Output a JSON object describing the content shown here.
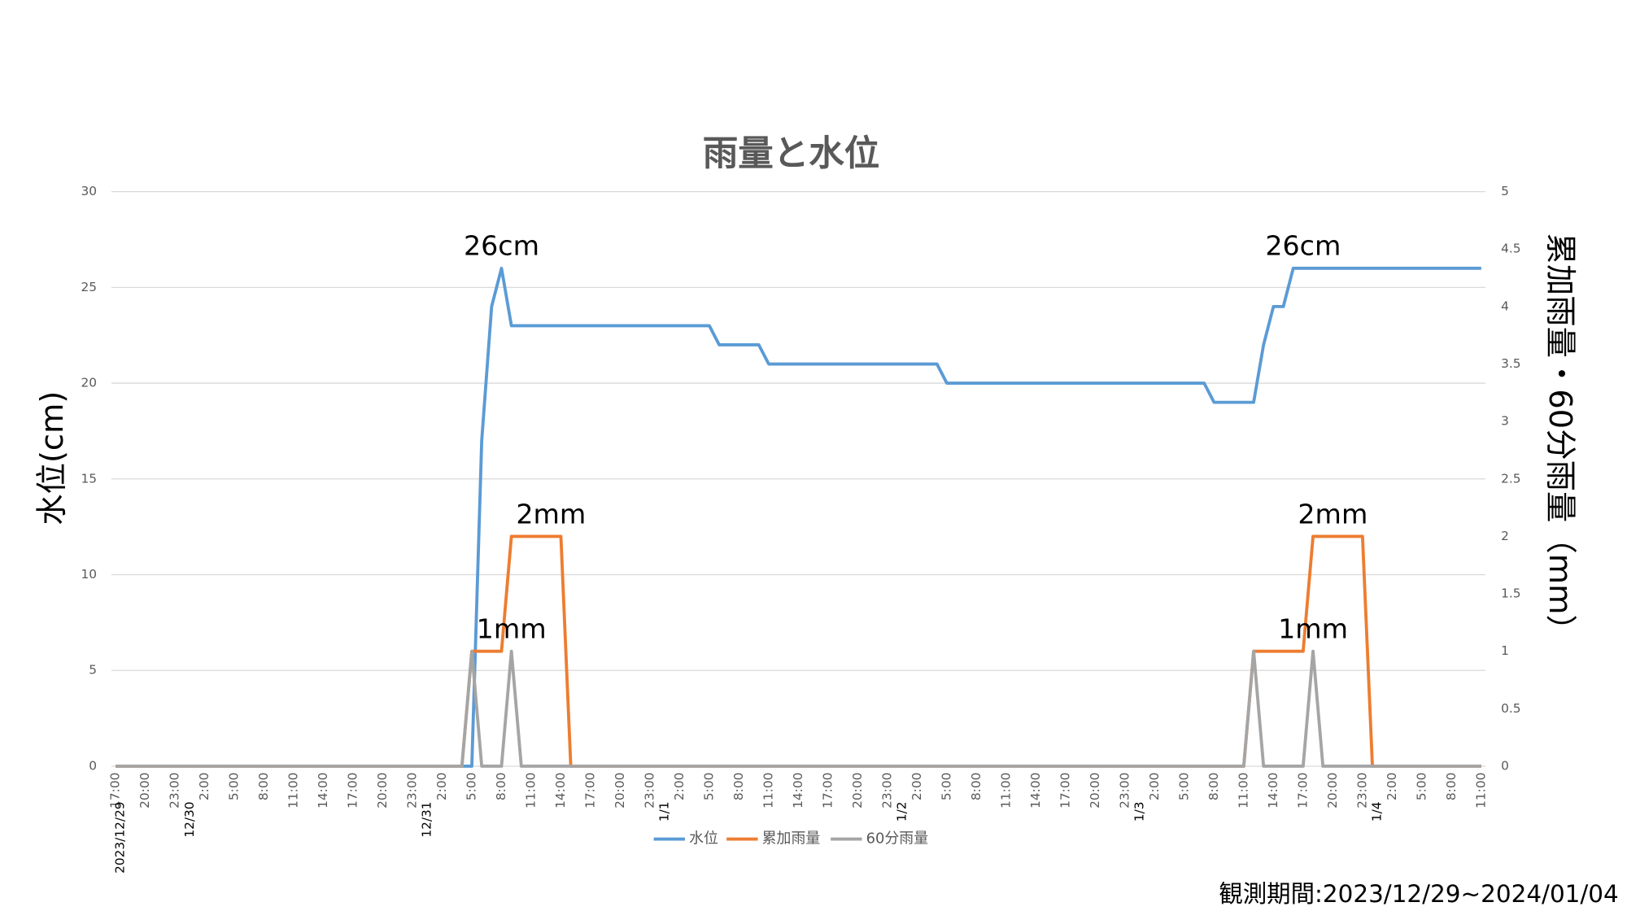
{
  "chart_data": {
    "type": "line",
    "title": "雨量と水位",
    "ylabel": "水位(cm)",
    "y2label": "累加雨量・60分雨量（mm）",
    "footnote": "観測期間:2023/12/29~2024/01/04",
    "categories": [
      "17:00",
      null,
      null,
      "20:00",
      null,
      null,
      "23:00",
      null,
      null,
      "2:00",
      null,
      null,
      "5:00",
      null,
      null,
      "8:00",
      null,
      null,
      "11:00",
      null,
      null,
      "14:00",
      null,
      null,
      "17:00",
      null,
      null,
      "20:00",
      null,
      null,
      "23:00",
      null,
      null,
      "2:00",
      null,
      null,
      "5:00",
      null,
      null,
      "8:00",
      null,
      null,
      "11:00",
      null,
      null,
      "14:00",
      null,
      null,
      "17:00",
      null,
      null,
      "20:00",
      null,
      null,
      "23:00",
      null,
      null,
      "2:00",
      null,
      null,
      "5:00",
      null,
      null,
      "8:00",
      null,
      null,
      "11:00",
      null,
      null,
      "14:00",
      null,
      null,
      "17:00",
      null,
      null,
      "20:00",
      null,
      null,
      "23:00",
      null,
      null,
      "2:00",
      null,
      null,
      "5:00",
      null,
      null,
      "8:00",
      null,
      null,
      "11:00",
      null,
      null,
      "14:00",
      null,
      null,
      "17:00",
      null,
      null,
      "20:00",
      null,
      null,
      "23:00",
      null,
      null,
      "2:00",
      null,
      null,
      "5:00",
      null,
      null,
      "8:00",
      null,
      null,
      "11:00",
      null,
      null,
      "14:00",
      null,
      null,
      "17:00",
      null,
      null,
      "20:00",
      null,
      null,
      "23:00",
      null,
      null,
      "2:00",
      null,
      null,
      "5:00",
      null,
      null,
      "8:00",
      null,
      null,
      "11:00"
    ],
    "date_categories": [
      "2023/12/29",
      null,
      null,
      null,
      null,
      null,
      null,
      "12/30",
      null,
      null,
      null,
      null,
      null,
      null,
      null,
      null,
      null,
      null,
      null,
      null,
      null,
      null,
      null,
      null,
      null,
      null,
      null,
      null,
      null,
      null,
      null,
      "12/31",
      null,
      null,
      null,
      null,
      null,
      null,
      null,
      null,
      null,
      null,
      null,
      null,
      null,
      null,
      null,
      null,
      null,
      null,
      null,
      null,
      null,
      null,
      null,
      "1/1",
      null,
      null,
      null,
      null,
      null,
      null,
      null,
      null,
      null,
      null,
      null,
      null,
      null,
      null,
      null,
      null,
      null,
      null,
      null,
      null,
      null,
      null,
      null,
      "1/2",
      null,
      null,
      null,
      null,
      null,
      null,
      null,
      null,
      null,
      null,
      null,
      null,
      null,
      null,
      null,
      null,
      null,
      null,
      null,
      null,
      null,
      null,
      null,
      "1/3",
      null,
      null,
      null,
      null,
      null,
      null,
      null,
      null,
      null,
      null,
      null,
      null,
      null,
      null,
      null,
      null,
      null,
      null,
      null,
      null,
      null,
      null,
      null,
      "1/4",
      null,
      null,
      null,
      null,
      null,
      null,
      null,
      null,
      null,
      null,
      null
    ],
    "series": [
      {
        "name": "水位",
        "color": "#5b9bd5",
        "values": [
          0,
          0,
          0,
          0,
          0,
          0,
          0,
          0,
          0,
          0,
          0,
          0,
          0,
          0,
          0,
          0,
          0,
          0,
          0,
          0,
          0,
          0,
          0,
          0,
          0,
          0,
          0,
          0,
          0,
          0,
          0,
          0,
          0,
          0,
          0,
          0,
          0,
          17,
          24,
          26,
          23,
          23,
          23,
          23,
          23,
          23,
          23,
          23,
          23,
          23,
          23,
          23,
          23,
          23,
          23,
          23,
          23,
          23,
          23,
          23,
          23,
          22,
          22,
          22,
          22,
          22,
          21,
          21,
          21,
          21,
          21,
          21,
          21,
          21,
          21,
          21,
          21,
          21,
          21,
          21,
          21,
          21,
          21,
          21,
          20,
          20,
          20,
          20,
          20,
          20,
          20,
          20,
          20,
          20,
          20,
          20,
          20,
          20,
          20,
          20,
          20,
          20,
          20,
          20,
          20,
          20,
          20,
          20,
          20,
          20,
          20,
          19,
          19,
          19,
          19,
          19,
          22,
          24,
          24,
          26,
          26,
          26,
          26,
          26,
          26,
          26,
          26,
          26,
          26,
          26,
          26,
          26,
          26,
          26,
          26,
          26,
          26,
          26,
          26
        ]
      },
      {
        "name": "累加雨量",
        "color": "#ed7d31",
        "axis": "y2",
        "values": [
          0,
          0,
          0,
          0,
          0,
          0,
          0,
          0,
          0,
          0,
          0,
          0,
          0,
          0,
          0,
          0,
          0,
          0,
          0,
          0,
          0,
          0,
          0,
          0,
          0,
          0,
          0,
          0,
          0,
          0,
          0,
          0,
          0,
          0,
          0,
          0,
          1,
          1,
          1,
          1,
          2,
          2,
          2,
          2,
          2,
          2,
          0,
          0,
          0,
          0,
          0,
          0,
          0,
          0,
          0,
          0,
          0,
          0,
          0,
          0,
          0,
          0,
          0,
          0,
          0,
          0,
          0,
          0,
          0,
          0,
          0,
          0,
          0,
          0,
          0,
          0,
          0,
          0,
          0,
          0,
          0,
          0,
          0,
          0,
          0,
          0,
          0,
          0,
          0,
          0,
          0,
          0,
          0,
          0,
          0,
          0,
          0,
          0,
          0,
          0,
          0,
          0,
          0,
          0,
          0,
          0,
          0,
          0,
          0,
          0,
          0,
          0,
          0,
          0,
          0,
          1,
          1,
          1,
          1,
          1,
          1,
          2,
          2,
          2,
          2,
          2,
          2,
          0,
          0,
          0,
          0,
          0,
          0,
          0,
          0,
          0,
          0,
          0,
          0
        ]
      },
      {
        "name": "60分雨量",
        "color": "#a5a5a5",
        "axis": "y2",
        "values": [
          0,
          0,
          0,
          0,
          0,
          0,
          0,
          0,
          0,
          0,
          0,
          0,
          0,
          0,
          0,
          0,
          0,
          0,
          0,
          0,
          0,
          0,
          0,
          0,
          0,
          0,
          0,
          0,
          0,
          0,
          0,
          0,
          0,
          0,
          0,
          0,
          1,
          0,
          0,
          0,
          1,
          0,
          0,
          0,
          0,
          0,
          0,
          0,
          0,
          0,
          0,
          0,
          0,
          0,
          0,
          0,
          0,
          0,
          0,
          0,
          0,
          0,
          0,
          0,
          0,
          0,
          0,
          0,
          0,
          0,
          0,
          0,
          0,
          0,
          0,
          0,
          0,
          0,
          0,
          0,
          0,
          0,
          0,
          0,
          0,
          0,
          0,
          0,
          0,
          0,
          0,
          0,
          0,
          0,
          0,
          0,
          0,
          0,
          0,
          0,
          0,
          0,
          0,
          0,
          0,
          0,
          0,
          0,
          0,
          0,
          0,
          0,
          0,
          0,
          0,
          1,
          0,
          0,
          0,
          0,
          0,
          1,
          0,
          0,
          0,
          0,
          0,
          0,
          0,
          0,
          0,
          0,
          0,
          0,
          0,
          0,
          0,
          0,
          0
        ]
      }
    ],
    "ylim": [
      0,
      30
    ],
    "yticks": [
      0,
      5,
      10,
      15,
      20,
      25,
      30
    ],
    "y2lim": [
      0,
      5
    ],
    "y2ticks": [
      0,
      0.5,
      1,
      1.5,
      2,
      2.5,
      3,
      3.5,
      4,
      4.5,
      5
    ],
    "grid": true,
    "legend": "bottom",
    "annotations": [
      {
        "text": "26cm",
        "series": 0,
        "index": 39
      },
      {
        "text": "26cm",
        "series": 0,
        "index": 120
      },
      {
        "text": "2mm",
        "series": 1,
        "index": 44
      },
      {
        "text": "2mm",
        "series": 1,
        "index": 123
      },
      {
        "text": "1mm",
        "series": 2,
        "index": 40
      },
      {
        "text": "1mm",
        "series": 2,
        "index": 121
      }
    ]
  }
}
